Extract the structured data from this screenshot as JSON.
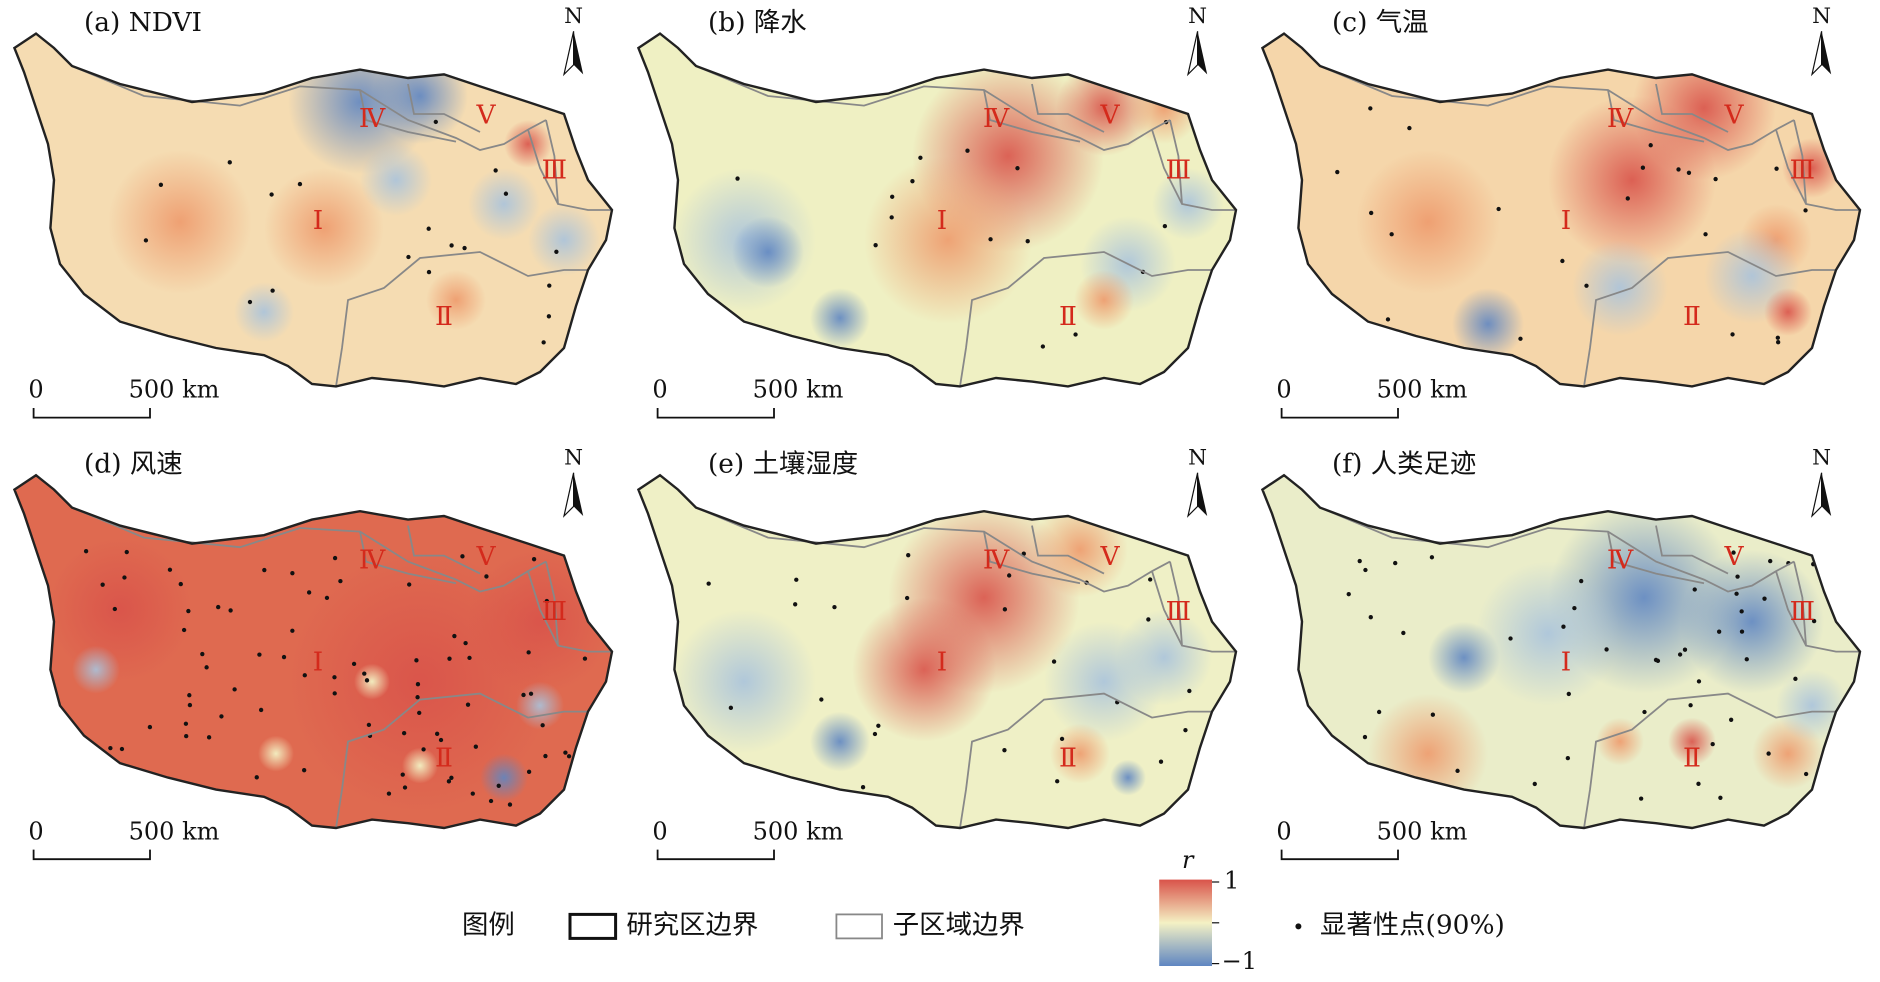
{
  "panels": [
    {
      "title": "(a) NDVI"
    },
    {
      "title": "(b) 降水"
    },
    {
      "title": "(c) 气温"
    },
    {
      "title": "(d) 风速"
    },
    {
      "title": "(e) 土壤湿度"
    },
    {
      "title": "(f) 人类足迹"
    }
  ],
  "map_labels": {
    "north": "N",
    "scale_start": "0",
    "scale_end": "500 km",
    "regions": [
      "Ⅰ",
      "Ⅱ",
      "Ⅲ",
      "Ⅳ",
      "Ⅴ"
    ]
  },
  "legend": {
    "title": "图例",
    "study_boundary": "研究区边界",
    "sub_boundary": "子区域边界",
    "significant": "显著性点(90%)",
    "colorbar_title": "r",
    "colorbar_max": "1",
    "colorbar_min": "−1"
  }
}
